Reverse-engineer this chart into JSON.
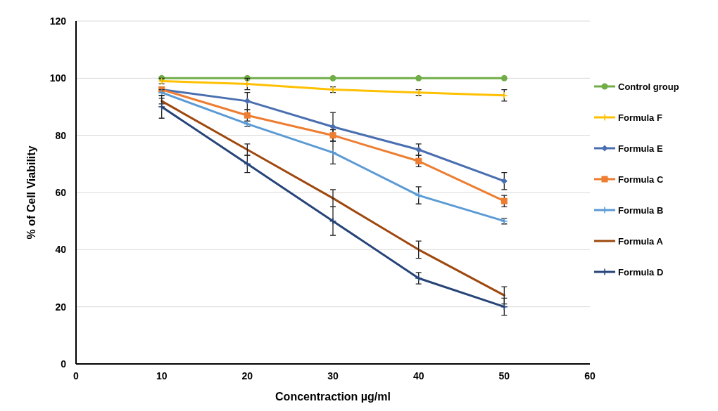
{
  "chart_data": {
    "type": "line",
    "xlabel": "Concentraction µg/ml",
    "ylabel": "% of Cell Viability",
    "x": [
      10,
      20,
      30,
      40,
      50
    ],
    "xlim": [
      0,
      60
    ],
    "xticks": [
      0,
      10,
      20,
      30,
      40,
      50,
      60
    ],
    "ylim": [
      0,
      120
    ],
    "yticks": [
      0,
      20,
      40,
      60,
      80,
      100,
      120
    ],
    "grid": "y",
    "legend": "right",
    "series": [
      {
        "name": "Control group",
        "color": "#70ad47",
        "marker": "circle",
        "values": [
          100,
          100,
          100,
          100,
          100
        ]
      },
      {
        "name": "Formula F",
        "color": "#ffc000",
        "marker": "cross",
        "values": [
          99,
          98,
          96,
          95,
          94
        ],
        "errors": [
          1,
          2,
          1,
          1,
          2
        ]
      },
      {
        "name": "Formula E",
        "color": "#4a6fb0",
        "marker": "diamond",
        "values": [
          96,
          92,
          83,
          75,
          64
        ],
        "errors": [
          1,
          3,
          5,
          2,
          3
        ]
      },
      {
        "name": "Formula C",
        "color": "#ed7d31",
        "marker": "square",
        "values": [
          96,
          87,
          80,
          71,
          57
        ],
        "errors": [
          1,
          2,
          2,
          2,
          2
        ]
      },
      {
        "name": "Formula B",
        "color": "#5b9bd5",
        "marker": "cross",
        "values": [
          95,
          84,
          74,
          59,
          50
        ],
        "errors": [
          1,
          1,
          4,
          3,
          1
        ]
      },
      {
        "name": "Formula A",
        "color": "#9e480e",
        "marker": "none",
        "values": [
          92,
          75,
          58,
          40,
          24
        ],
        "errors": [
          1,
          2,
          3,
          3,
          3
        ]
      },
      {
        "name": "Formula D",
        "color": "#264478",
        "marker": "cross",
        "values": [
          90,
          70,
          50,
          30,
          20
        ],
        "errors": [
          4,
          3,
          5,
          2,
          3
        ]
      }
    ]
  }
}
